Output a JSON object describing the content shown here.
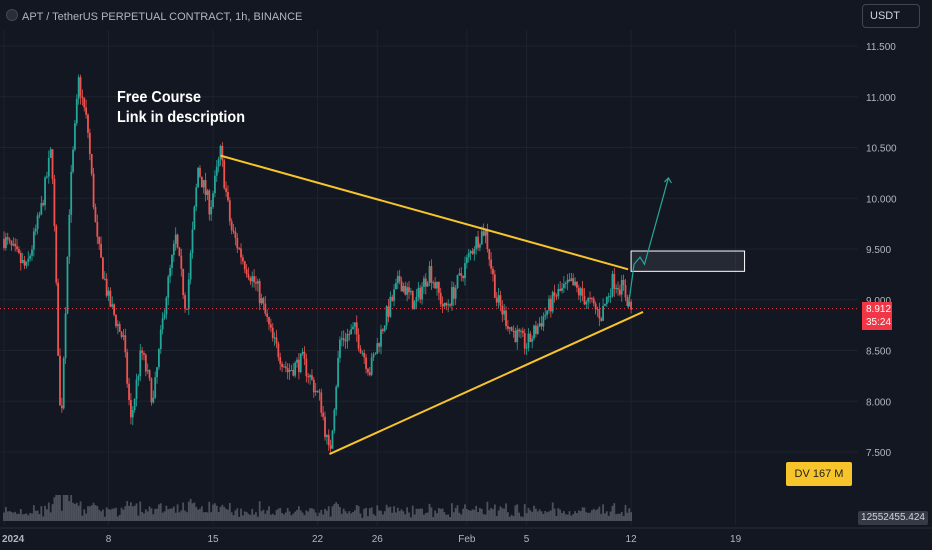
{
  "header": {
    "title": "APT / TetherUS PERPETUAL CONTRACT, 1h, BINANCE",
    "currency_button": "USDT"
  },
  "annotation": {
    "line1": "Free Course",
    "line2": "Link in description"
  },
  "price_badge": {
    "price": "8.912",
    "countdown": "35:24"
  },
  "dv_badge": "DV 167 M",
  "volume_badge": "12552455.424",
  "colors": {
    "background": "#131722",
    "up": "#26a69a",
    "down": "#ef5350",
    "trendline": "#f7c52b",
    "last_price": "#f23645",
    "projection": "#26a69a"
  },
  "chart_data": {
    "type": "candlestick",
    "y_axis": {
      "ticks": [
        "11.500",
        "11.000",
        "10.500",
        "10.000",
        "9.500",
        "9.000",
        "8.500",
        "8.000",
        "7.500"
      ],
      "tick_values": [
        11.5,
        11.0,
        10.5,
        10.0,
        9.5,
        9.0,
        8.5,
        8.0,
        7.5
      ],
      "range": [
        7.2,
        11.75
      ]
    },
    "x_axis": {
      "ticks": [
        "2024",
        "8",
        "15",
        "22",
        "26",
        "Feb",
        "5",
        "12",
        "19"
      ],
      "tick_positions_days": [
        0,
        7,
        14,
        21,
        25,
        31,
        35,
        42,
        49
      ],
      "range_days": [
        0,
        54
      ]
    },
    "price_path": [
      [
        0,
        9.6
      ],
      [
        1.5,
        9.3
      ],
      [
        2.5,
        9.9
      ],
      [
        3.2,
        10.5
      ],
      [
        3.8,
        7.7
      ],
      [
        4.4,
        10.0
      ],
      [
        5.0,
        11.15
      ],
      [
        5.6,
        10.7
      ],
      [
        6.2,
        9.6
      ],
      [
        7.0,
        9.0
      ],
      [
        8.0,
        8.6
      ],
      [
        8.5,
        7.8
      ],
      [
        9.2,
        8.5
      ],
      [
        10.0,
        8.0
      ],
      [
        10.8,
        9.0
      ],
      [
        11.5,
        9.6
      ],
      [
        12.2,
        8.9
      ],
      [
        13.0,
        10.3
      ],
      [
        13.8,
        9.9
      ],
      [
        14.5,
        10.45
      ],
      [
        15.2,
        9.7
      ],
      [
        16.0,
        9.4
      ],
      [
        17.0,
        9.1
      ],
      [
        18.0,
        8.6
      ],
      [
        19.0,
        8.3
      ],
      [
        20.0,
        8.4
      ],
      [
        21.2,
        8.0
      ],
      [
        21.8,
        7.45
      ],
      [
        22.5,
        8.6
      ],
      [
        23.5,
        8.7
      ],
      [
        24.5,
        8.3
      ],
      [
        25.5,
        8.8
      ],
      [
        26.5,
        9.2
      ],
      [
        27.5,
        8.95
      ],
      [
        28.5,
        9.3
      ],
      [
        29.5,
        8.9
      ],
      [
        30.5,
        9.2
      ],
      [
        31.5,
        9.55
      ],
      [
        32.2,
        9.7
      ],
      [
        33.0,
        9.0
      ],
      [
        34.0,
        8.7
      ],
      [
        35.0,
        8.55
      ],
      [
        36.0,
        8.8
      ],
      [
        37.0,
        9.05
      ],
      [
        38.0,
        9.15
      ],
      [
        39.0,
        9.0
      ],
      [
        40.0,
        8.85
      ],
      [
        40.8,
        9.2
      ],
      [
        41.5,
        9.1
      ],
      [
        42.0,
        8.91
      ]
    ],
    "last_price": 8.912,
    "drawings": {
      "upper_trendline": [
        [
          14.5,
          10.42
        ],
        [
          41.8,
          9.3
        ]
      ],
      "lower_trendline": [
        [
          21.8,
          7.48
        ],
        [
          42.8,
          8.88
        ]
      ],
      "resistance_box": {
        "x": [
          42.0,
          49.6
        ],
        "y": [
          9.28,
          9.48
        ]
      },
      "projection_arrow": [
        [
          41.8,
          8.92
        ],
        [
          42.2,
          9.35
        ],
        [
          42.6,
          9.42
        ],
        [
          42.9,
          9.35
        ],
        [
          44.5,
          10.2
        ]
      ]
    }
  }
}
